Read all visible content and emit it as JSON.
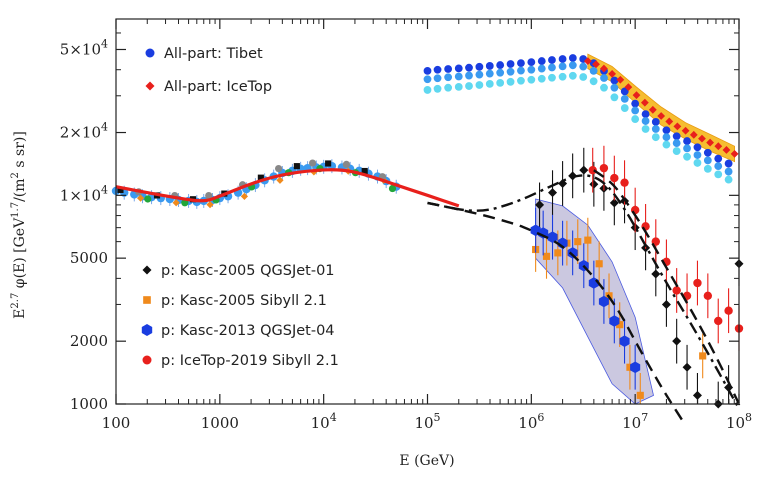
{
  "chart_data": {
    "type": "scatter",
    "xlabel": "E (GeV)",
    "ylabel": "E^{2.7} φ(E)   [GeV^{1.7}/(m^2 s sr)]",
    "xscale": "log",
    "yscale": "log",
    "xlim": [
      100,
      100000000
    ],
    "ylim": [
      1000,
      70000
    ],
    "x_ticks": [
      {
        "value": 100,
        "label": "100"
      },
      {
        "value": 1000,
        "label": "1000"
      },
      {
        "value": 10000,
        "label": "10",
        "exp": "4"
      },
      {
        "value": 100000,
        "label": "10",
        "exp": "5"
      },
      {
        "value": 1000000,
        "label": "10",
        "exp": "6"
      },
      {
        "value": 10000000,
        "label": "10",
        "exp": "7"
      },
      {
        "value": 100000000,
        "label": "10",
        "exp": "8"
      }
    ],
    "y_ticks": [
      {
        "value": 1000,
        "label": "1000"
      },
      {
        "value": 2000,
        "label": "2000"
      },
      {
        "value": 5000,
        "label": "5000"
      },
      {
        "value": 10000,
        "label": "1×10",
        "exp": "4"
      },
      {
        "value": 20000,
        "label": "2×10",
        "exp": "4"
      },
      {
        "value": 50000,
        "label": "5×10",
        "exp": "4"
      }
    ],
    "legend_top": [
      {
        "label": "All-part: Tibet",
        "color": "#1a3de0",
        "marker": "circle"
      },
      {
        "label": "All-part: IceTop",
        "color": "#e8201c",
        "marker": "diamond"
      }
    ],
    "legend_bottom": [
      {
        "label": "p: Kasc-2005 QGSJet-01",
        "color": "#111111",
        "marker": "diamond"
      },
      {
        "label": "p: Kasc-2005 Sibyll 2.1",
        "color": "#f08a1c",
        "marker": "square"
      },
      {
        "label": "p: Kasc-2013 QGSJet-04",
        "color": "#1a3de0",
        "marker": "hexagon"
      },
      {
        "label": "p: IceTop-2019 Sibyll 2.1",
        "color": "#e8201c",
        "marker": "circle"
      }
    ],
    "series": [
      {
        "name": "All-part: Tibet (upper)",
        "color": "#1a3de0",
        "marker": "circle",
        "x": [
          100000,
          125000,
          158000,
          200000,
          251000,
          316000,
          398000,
          501000,
          631000,
          794000,
          1000000,
          1260000,
          1580000,
          2000000,
          2510000,
          3160000,
          3980000,
          5010000,
          6310000,
          7940000,
          10000000,
          12600000,
          15800000,
          20000000,
          25100000,
          31600000,
          39800000,
          50100000,
          63100000,
          79400000
        ],
        "y": [
          39500,
          40000,
          40300,
          40600,
          40900,
          41300,
          41700,
          42100,
          42600,
          43000,
          43500,
          44000,
          44500,
          45000,
          45500,
          45000,
          43000,
          39500,
          35500,
          31500,
          27500,
          24500,
          22500,
          20500,
          19200,
          18200,
          17000,
          16000,
          15000,
          14200
        ]
      },
      {
        "name": "All-part: Tibet (middle)",
        "color": "#3a9af0",
        "marker": "circle",
        "x": [
          100000,
          125000,
          158000,
          200000,
          251000,
          316000,
          398000,
          501000,
          631000,
          794000,
          1000000,
          1260000,
          1580000,
          2000000,
          2510000,
          3160000,
          3980000,
          5010000,
          6310000,
          7940000,
          10000000,
          12600000,
          15800000,
          20000000,
          25100000,
          31600000,
          39800000,
          50100000,
          63100000,
          79400000
        ],
        "y": [
          36000,
          36400,
          36800,
          37100,
          37500,
          37900,
          38300,
          38700,
          39100,
          39600,
          40000,
          40500,
          41000,
          41500,
          42000,
          41400,
          39500,
          36500,
          32800,
          29000,
          25500,
          22700,
          20800,
          19000,
          17800,
          16800,
          15600,
          14700,
          13800,
          13000
        ]
      },
      {
        "name": "All-part: Tibet (lower)",
        "color": "#5fd8f0",
        "marker": "circle",
        "x": [
          100000,
          125000,
          158000,
          200000,
          251000,
          316000,
          398000,
          501000,
          631000,
          794000,
          1000000,
          1260000,
          1580000,
          2000000,
          2510000,
          3160000,
          3980000,
          5010000,
          6310000,
          7940000,
          10000000,
          12600000,
          15800000,
          20000000,
          25100000,
          31600000,
          39800000,
          50100000,
          63100000,
          79400000
        ],
        "y": [
          32000,
          32400,
          32800,
          33100,
          33400,
          33800,
          34200,
          34600,
          35000,
          35400,
          35800,
          36200,
          36600,
          37000,
          37400,
          36900,
          35200,
          32800,
          29500,
          26200,
          23200,
          20800,
          19000,
          17500,
          16300,
          15300,
          14300,
          13400,
          12600,
          11900
        ]
      },
      {
        "name": "All-part: IceTop",
        "color": "#e8201c",
        "marker": "diamond",
        "x": [
          3500000,
          4200000,
          5000000,
          6000000,
          7200000,
          8600000,
          10300000,
          12400000,
          14800000,
          17800000,
          21300000,
          25500000,
          30600000,
          36700000,
          44000000,
          52700000,
          63200000,
          75700000,
          90700000
        ],
        "y": [
          44000,
          42500,
          40500,
          38200,
          35800,
          33000,
          30200,
          27800,
          25700,
          24000,
          22600,
          21400,
          20400,
          19500,
          18700,
          17900,
          17200,
          16500,
          15800
        ]
      },
      {
        "name": "p: Kasc-2005 QGSJet-01",
        "color": "#111111",
        "marker": "diamond",
        "x": [
          1200000,
          1600000,
          2000000,
          2500000,
          3200000,
          4000000,
          5000000,
          6300000,
          7900000,
          10000000,
          12600000,
          15800000,
          20000000,
          25100000,
          31600000,
          39800000,
          50100000,
          63100000,
          79400000,
          100000000
        ],
        "y": [
          9000,
          10300,
          11400,
          12400,
          13200,
          11300,
          10800,
          9200,
          9400,
          7000,
          5600,
          4200,
          3000,
          2000,
          1500,
          1100,
          900,
          1000,
          1200,
          4700
        ]
      },
      {
        "name": "p: Kasc-2005 Sibyll 2.1",
        "color": "#f08a1c",
        "marker": "square",
        "x": [
          1100000,
          1400000,
          1800000,
          2200000,
          2800000,
          3500000,
          4500000,
          5600000,
          7100000,
          8900000,
          11200000,
          44700000,
          56200000
        ],
        "y": [
          5500,
          5100,
          5300,
          5900,
          6000,
          6100,
          4700,
          3300,
          2400,
          1500,
          1100,
          1700,
          900
        ]
      },
      {
        "name": "p: Kasc-2013 QGSJet-04",
        "color": "#1a3de0",
        "marker": "hexagon",
        "x": [
          1100000,
          1300000,
          1600000,
          2000000,
          2500000,
          3200000,
          4000000,
          5000000,
          6300000,
          7900000,
          10000000
        ],
        "y": [
          6800,
          6600,
          6300,
          5900,
          5300,
          4600,
          3800,
          3100,
          2500,
          2000,
          1500
        ]
      },
      {
        "name": "p: IceTop-2019 Sibyll 2.1",
        "color": "#e8201c",
        "marker": "circle",
        "x": [
          3900000,
          5000000,
          6300000,
          7900000,
          10000000,
          12600000,
          15800000,
          20000000,
          25100000,
          31600000,
          39800000,
          50100000,
          63100000,
          79400000,
          100000000
        ],
        "y": [
          13200,
          13500,
          12100,
          11500,
          8500,
          7100,
          6000,
          4800,
          3500,
          3300,
          3800,
          3300,
          2500,
          2800,
          2300
        ]
      },
      {
        "name": "Direct p/He data (low energy)",
        "color": "#3a9af0",
        "marker": "circle",
        "x": [
          100,
          120,
          150,
          180,
          220,
          270,
          330,
          400,
          500,
          600,
          700,
          850,
          1000,
          1200,
          1500,
          1800,
          2200,
          2700,
          3300,
          4000,
          5000,
          6000,
          7000,
          8500,
          10000,
          12000,
          15000,
          18000,
          22000,
          27000,
          33000,
          40000,
          50000
        ],
        "y": [
          10500,
          10300,
          10100,
          9900,
          9800,
          9700,
          9600,
          9500,
          9400,
          9300,
          9400,
          9500,
          9700,
          9900,
          10300,
          10700,
          11200,
          11800,
          12300,
          12800,
          13100,
          13400,
          13500,
          13600,
          13700,
          13800,
          13600,
          13400,
          13100,
          12700,
          12300,
          11700,
          11000
        ]
      }
    ],
    "fit_curves": [
      {
        "name": "solid fit (red)",
        "style": "solid",
        "color": "#e8201c",
        "x": [
          100,
          200,
          400,
          700,
          1000,
          2000,
          4000,
          8000,
          15000,
          25000,
          50000,
          100000,
          200000
        ],
        "y": [
          11000,
          10300,
          9700,
          9300,
          9900,
          11400,
          12600,
          13200,
          13300,
          12600,
          11200,
          10000,
          8900
        ]
      },
      {
        "name": "dash-dot total",
        "style": "dashdot",
        "color": "#111111",
        "x": [
          100000,
          300000,
          700000,
          1500000,
          3000000,
          5000000,
          8000000,
          12000000,
          20000000,
          35000000,
          60000000,
          100000000
        ],
        "y": [
          9200,
          8200,
          9200,
          11000,
          12800,
          11800,
          8600,
          6000,
          3800,
          2400,
          1500,
          950
        ]
      },
      {
        "name": "dashed proton",
        "style": "dashed",
        "color": "#111111",
        "x": [
          100000,
          300000,
          700000,
          1000000,
          2000000,
          4000000,
          7000000,
          10000000,
          15000000,
          20000000,
          30000000
        ],
        "y": [
          9200,
          8200,
          7300,
          6800,
          5800,
          4100,
          2800,
          2000,
          1400,
          1100,
          800
        ]
      },
      {
        "name": "dashed IceTop proton",
        "style": "dashed",
        "color": "#111111",
        "x": [
          4000000,
          6000000,
          8000000,
          12000000,
          20000000,
          35000000,
          60000000,
          100000000
        ],
        "y": [
          13200,
          11500,
          9500,
          7000,
          4500,
          2800,
          1700,
          1000
        ]
      }
    ],
    "uncertainty_bands": [
      {
        "name": "Kasc-2013 band",
        "color": "#b9b6d6",
        "upper_x": [
          1100000,
          2000000,
          3500000,
          6000000,
          10000000,
          15000000
        ],
        "upper_y": [
          9600,
          8900,
          7200,
          4800,
          2600,
          1100
        ],
        "lower_x": [
          1100000,
          2000000,
          3500000,
          6000000,
          10000000
        ],
        "lower_y": [
          5000,
          3600,
          2100,
          1250,
          900
        ]
      },
      {
        "name": "IceTop band",
        "color": "#f5b61a",
        "upper_x": [
          3500000,
          6000000,
          10300000,
          17800000,
          30600000,
          52700000,
          90700000
        ],
        "upper_y": [
          47500,
          41500,
          33000,
          26500,
          22300,
          19600,
          17200
        ],
        "lower_x": [
          3500000,
          6000000,
          10300000,
          17800000,
          30600000,
          52700000,
          90700000
        ],
        "lower_y": [
          40500,
          35000,
          27500,
          21700,
          18600,
          16300,
          14500
        ]
      }
    ]
  }
}
